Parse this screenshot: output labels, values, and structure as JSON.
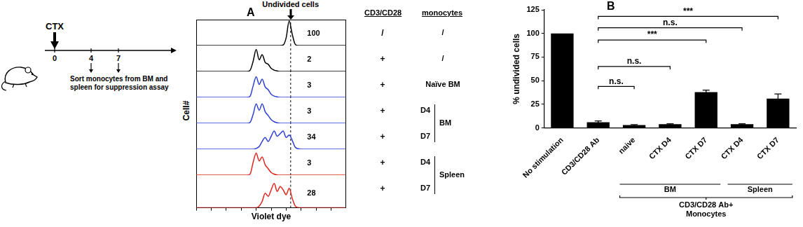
{
  "schematic": {
    "treatment": "CTX",
    "days": [
      0,
      4,
      7
    ],
    "note": [
      "Sort monocytes from BM and",
      "spleen for suppression assay"
    ]
  },
  "chart_data": [
    {
      "panel": "A",
      "type": "line",
      "annotation": "Undivided cells",
      "x_label": "Violet dye",
      "y_label": "Cell#",
      "column_headers": [
        "CD3/CD28",
        "monocytes"
      ],
      "xlim": [
        0,
        100
      ],
      "xticks": [
        0,
        10,
        20,
        30,
        40,
        50,
        60,
        70,
        80,
        90,
        100
      ],
      "ylim": [
        0,
        100
      ],
      "tick_labels": false,
      "grid": false,
      "undivided_x": 63,
      "x": [
        0,
        30,
        32,
        34,
        36,
        38,
        40,
        42,
        44,
        46,
        48,
        50,
        52,
        54,
        56,
        58,
        60,
        62,
        64,
        66,
        68,
        70,
        72,
        74,
        76,
        78,
        80,
        100
      ],
      "series": [
        {
          "cd3_cd28": "/",
          "monocytes": "/",
          "percent": 100,
          "color": "#000000",
          "values": [
            0,
            0,
            0,
            0,
            0,
            0,
            0,
            0,
            0,
            0,
            0,
            0,
            0,
            0,
            0,
            2,
            30,
            95,
            45,
            5,
            0,
            0,
            0,
            0,
            0,
            0,
            0,
            0
          ]
        },
        {
          "cd3_cd28": "+",
          "monocytes": "/",
          "percent": 2,
          "color": "#000000",
          "values": [
            0,
            0,
            0,
            0,
            5,
            40,
            85,
            45,
            65,
            35,
            28,
            12,
            5,
            2,
            0,
            0,
            0,
            0,
            0,
            0,
            0,
            0,
            0,
            0,
            0,
            0,
            0,
            0
          ]
        },
        {
          "cd3_cd28": "+",
          "monocytes": "Naïve BM",
          "percent": 3,
          "color": "#2b3fd6",
          "values": [
            0,
            0,
            0,
            0,
            5,
            45,
            80,
            50,
            70,
            40,
            30,
            12,
            5,
            2,
            0,
            0,
            0,
            0,
            0,
            0,
            0,
            0,
            0,
            0,
            0,
            0,
            0,
            0
          ]
        },
        {
          "cd3_cd28": "+",
          "monocytes": "D4",
          "percent": 3,
          "color": "#2b3fd6",
          "values": [
            0,
            0,
            0,
            0,
            4,
            35,
            75,
            50,
            75,
            45,
            30,
            14,
            6,
            2,
            0,
            0,
            0,
            0,
            0,
            0,
            0,
            0,
            0,
            0,
            0,
            0,
            0,
            0
          ]
        },
        {
          "cd3_cd28": "+",
          "monocytes": "D7",
          "percent": 34,
          "color": "#2b3fd6",
          "values": [
            0,
            0,
            0,
            0,
            0,
            0,
            3,
            10,
            30,
            45,
            30,
            50,
            70,
            50,
            60,
            70,
            45,
            55,
            35,
            8,
            2,
            0,
            0,
            0,
            0,
            0,
            0,
            0
          ]
        },
        {
          "cd3_cd28": "+",
          "monocytes": "D4",
          "percent": 3,
          "color": "#e0251b",
          "values": [
            0,
            0,
            0,
            0,
            5,
            50,
            85,
            55,
            70,
            40,
            25,
            10,
            4,
            1,
            0,
            0,
            0,
            0,
            0,
            0,
            0,
            0,
            0,
            0,
            0,
            0,
            0,
            0
          ]
        },
        {
          "cd3_cd28": "+",
          "monocytes": "D7",
          "percent": 28,
          "color": "#e0251b",
          "values": [
            0,
            0,
            0,
            0,
            0,
            0,
            0,
            5,
            20,
            45,
            35,
            55,
            75,
            50,
            65,
            55,
            40,
            60,
            30,
            6,
            1,
            0,
            0,
            0,
            0,
            0,
            0,
            0
          ]
        }
      ],
      "groups": [
        {
          "label": "BM",
          "rows": [
            3,
            4
          ]
        },
        {
          "label": "Spleen",
          "rows": [
            5,
            6
          ]
        }
      ]
    },
    {
      "panel": "B",
      "type": "bar",
      "y_label": "% undivided cells",
      "categories": [
        "No stimulation",
        "CD3/CD28 Ab",
        "naive",
        "CTX D4",
        "CTX D7",
        "CTX D4",
        "CTX D7"
      ],
      "values": [
        100,
        6,
        3,
        4,
        38,
        4,
        31
      ],
      "errors": [
        null,
        1.5,
        0.5,
        0.5,
        2,
        0.5,
        5
      ],
      "color": "#000000",
      "ylim": [
        0,
        125
      ],
      "yticks": [
        0,
        25,
        50,
        75,
        100,
        125
      ],
      "grid": false,
      "comparisons": [
        {
          "from": 1,
          "to": 6,
          "label": "***",
          "y": 118
        },
        {
          "from": 1,
          "to": 5,
          "label": "n.s.",
          "y": 106
        },
        {
          "from": 1,
          "to": 4,
          "label": "***",
          "y": 93
        },
        {
          "from": 1,
          "to": 3,
          "label": "n.s.",
          "y": 65
        },
        {
          "from": 1,
          "to": 2,
          "label": "n.s.",
          "y": 44
        }
      ],
      "groups": [
        {
          "label": "BM",
          "from": 2,
          "to": 4
        },
        {
          "label": "Spleen",
          "from": 5,
          "to": 6
        }
      ],
      "group_caption": [
        "CD3/CD28 Ab+",
        "Monocytes"
      ]
    }
  ]
}
